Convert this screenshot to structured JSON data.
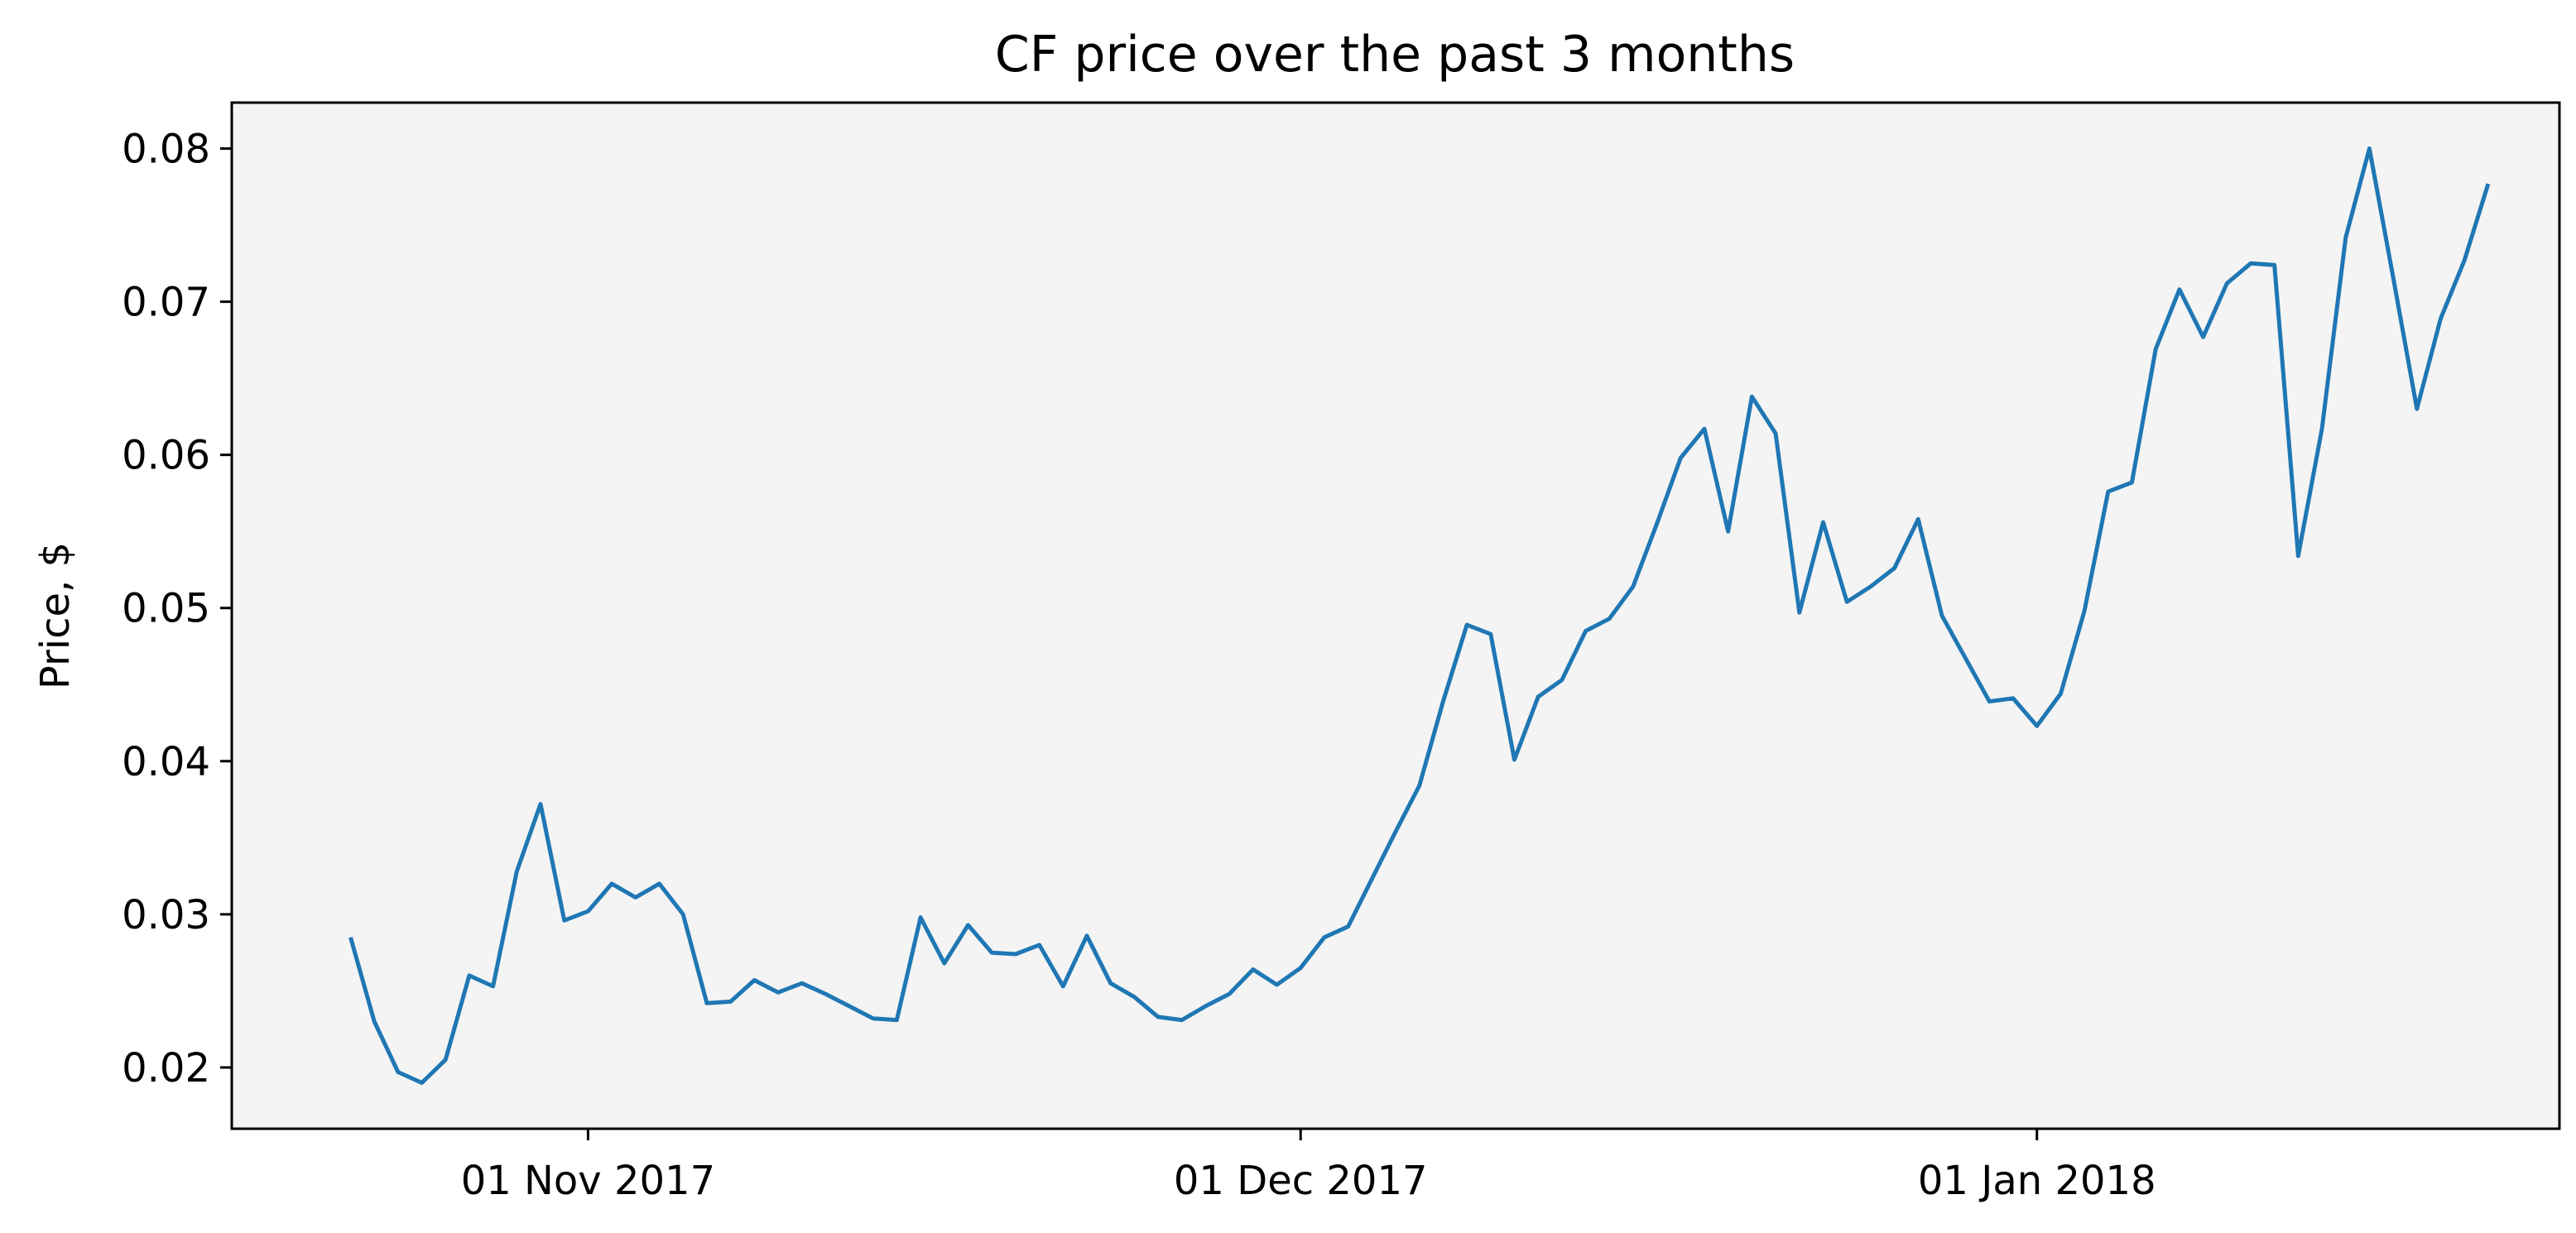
{
  "colors": {
    "plot_background": "#f4f4f4",
    "line": "#1f77b4",
    "axes": "#000000"
  },
  "chart_data": {
    "type": "line",
    "title": "CF price over the past 3 months",
    "xlabel": "",
    "ylabel": "Price, $",
    "xlim": [
      "2017-10-17",
      "2018-01-23"
    ],
    "ylim": [
      0.016,
      0.083
    ],
    "x_ticks": [
      {
        "date": "2017-11-01",
        "label": "01 Nov 2017"
      },
      {
        "date": "2017-12-01",
        "label": "01 Dec 2017"
      },
      {
        "date": "2018-01-01",
        "label": "01 Jan 2018"
      }
    ],
    "y_ticks": [
      {
        "value": 0.02,
        "label": "0.02"
      },
      {
        "value": 0.03,
        "label": "0.03"
      },
      {
        "value": 0.04,
        "label": "0.04"
      },
      {
        "value": 0.05,
        "label": "0.05"
      },
      {
        "value": 0.06,
        "label": "0.06"
      },
      {
        "value": 0.07,
        "label": "0.07"
      },
      {
        "value": 0.08,
        "label": "0.08"
      }
    ],
    "grid": false,
    "legend": "none",
    "x": [
      "2017-10-22",
      "2017-10-23",
      "2017-10-24",
      "2017-10-25",
      "2017-10-26",
      "2017-10-27",
      "2017-10-28",
      "2017-10-29",
      "2017-10-30",
      "2017-10-31",
      "2017-11-01",
      "2017-11-02",
      "2017-11-03",
      "2017-11-04",
      "2017-11-05",
      "2017-11-06",
      "2017-11-07",
      "2017-11-08",
      "2017-11-09",
      "2017-11-10",
      "2017-11-11",
      "2017-11-12",
      "2017-11-13",
      "2017-11-14",
      "2017-11-15",
      "2017-11-16",
      "2017-11-17",
      "2017-11-18",
      "2017-11-19",
      "2017-11-20",
      "2017-11-21",
      "2017-11-22",
      "2017-11-23",
      "2017-11-24",
      "2017-11-25",
      "2017-11-26",
      "2017-11-27",
      "2017-11-28",
      "2017-11-29",
      "2017-11-30",
      "2017-12-01",
      "2017-12-02",
      "2017-12-03",
      "2017-12-04",
      "2017-12-05",
      "2017-12-06",
      "2017-12-07",
      "2017-12-08",
      "2017-12-09",
      "2017-12-10",
      "2017-12-11",
      "2017-12-12",
      "2017-12-13",
      "2017-12-14",
      "2017-12-15",
      "2017-12-16",
      "2017-12-17",
      "2017-12-18",
      "2017-12-19",
      "2017-12-20",
      "2017-12-21",
      "2017-12-22",
      "2017-12-23",
      "2017-12-24",
      "2017-12-25",
      "2017-12-26",
      "2017-12-27",
      "2017-12-28",
      "2017-12-29",
      "2017-12-30",
      "2017-12-31",
      "2018-01-01",
      "2018-01-02",
      "2018-01-03",
      "2018-01-04",
      "2018-01-05",
      "2018-01-06",
      "2018-01-07",
      "2018-01-08",
      "2018-01-09",
      "2018-01-10",
      "2018-01-11",
      "2018-01-12",
      "2018-01-13",
      "2018-01-14",
      "2018-01-15",
      "2018-01-16",
      "2018-01-17",
      "2018-01-18",
      "2018-01-19",
      "2018-01-20"
    ],
    "values": [
      0.0285,
      0.023,
      0.0197,
      0.019,
      0.0205,
      0.026,
      0.0253,
      0.0328,
      0.0372,
      0.0296,
      0.0302,
      0.032,
      0.0311,
      0.032,
      0.03,
      0.0242,
      0.0243,
      0.0257,
      0.0249,
      0.0255,
      0.0248,
      0.024,
      0.0232,
      0.0231,
      0.0298,
      0.0268,
      0.0293,
      0.0275,
      0.0274,
      0.028,
      0.0253,
      0.0286,
      0.0255,
      0.0246,
      0.0233,
      0.0231,
      0.024,
      0.0248,
      0.0264,
      0.0254,
      0.0265,
      0.0285,
      0.0292,
      0.0323,
      0.0354,
      0.0384,
      0.0439,
      0.0489,
      0.0483,
      0.0401,
      0.0442,
      0.0453,
      0.0485,
      0.0493,
      0.0514,
      0.0555,
      0.0598,
      0.0617,
      0.055,
      0.0638,
      0.0614,
      0.0497,
      0.0556,
      0.0504,
      0.0514,
      0.0526,
      0.0558,
      0.0495,
      0.0467,
      0.0439,
      0.0441,
      0.0423,
      0.0444,
      0.0498,
      0.0576,
      0.0582,
      0.0669,
      0.0708,
      0.0677,
      0.0712,
      0.0725,
      0.0724,
      0.0534,
      0.0617,
      0.0742,
      0.08,
      0.0716,
      0.063,
      0.0689,
      0.0727,
      0.0777
    ]
  }
}
